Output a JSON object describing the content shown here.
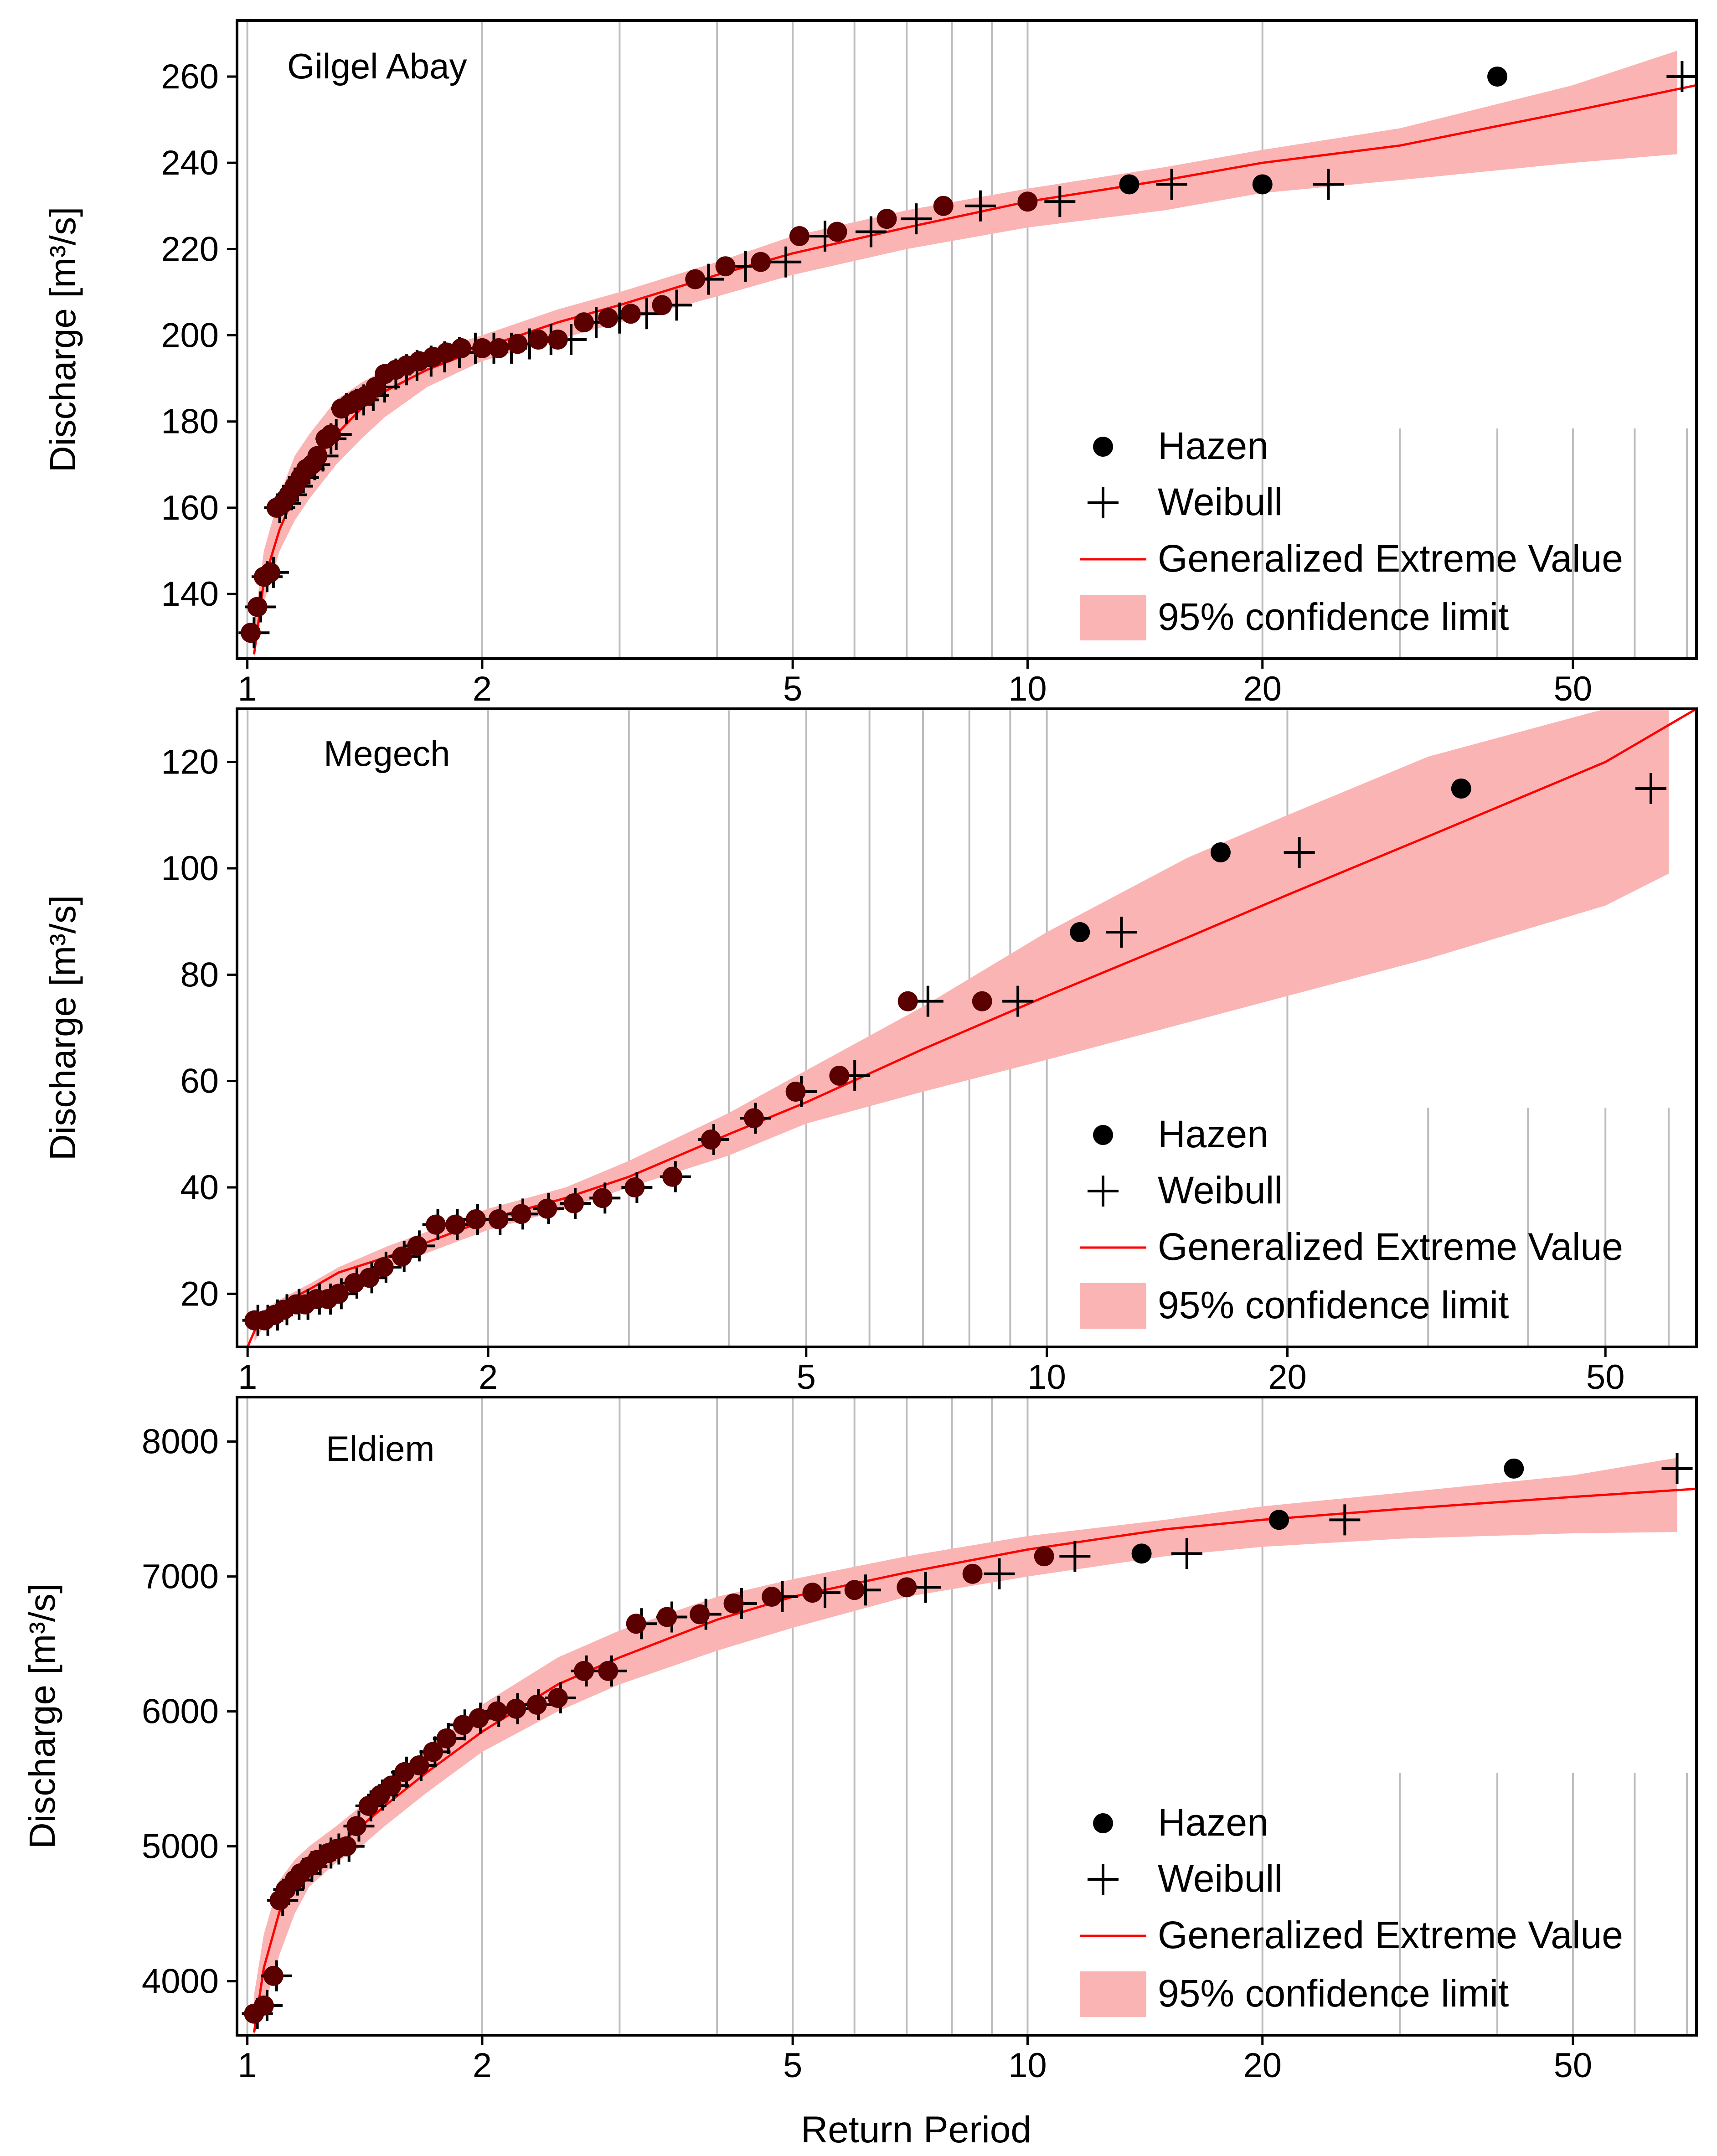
{
  "figure": {
    "xlabel": "Return Period",
    "legend": {
      "hazen": "Hazen",
      "weibull": "Weibull",
      "gev": "Generalized Extreme Value",
      "ci": "95% confidence limit"
    },
    "colors": {
      "band": "#fbb4b4",
      "line": "#ff0000",
      "hazen_point": "#000000",
      "overlap_point": "#5a0000",
      "grid": "#bdbdbd"
    }
  },
  "chart_data": [
    {
      "type": "scatter",
      "title": "Gilgel Abay",
      "ylabel": "Discharge  [m³/s]",
      "xlabel": "",
      "xscale": "log",
      "xlim": [
        0.97,
        72
      ],
      "ylim": [
        125,
        273
      ],
      "xticks": [
        1,
        2,
        5,
        10,
        20,
        50
      ],
      "yticks": [
        140,
        160,
        180,
        200,
        220,
        240,
        260
      ],
      "hazen": {
        "x": [
          1.01,
          1.03,
          1.05,
          1.07,
          1.09,
          1.11,
          1.13,
          1.15,
          1.17,
          1.19,
          1.21,
          1.23,
          1.26,
          1.28,
          1.32,
          1.35,
          1.38,
          1.42,
          1.46,
          1.5,
          1.55,
          1.6,
          1.66,
          1.73,
          1.8,
          1.88,
          2.0,
          2.1,
          2.22,
          2.36,
          2.5,
          2.7,
          2.9,
          3.1,
          3.4,
          3.75,
          4.1,
          4.55,
          5.1,
          5.7,
          6.6,
          7.8,
          10.0,
          13.5,
          20.0,
          40.0
        ],
        "y": [
          131,
          137,
          144,
          145,
          160,
          161,
          163,
          165,
          167,
          169,
          170,
          172,
          176,
          177,
          183,
          184,
          185,
          186,
          188,
          191,
          192,
          193,
          194,
          195,
          196,
          197,
          197,
          197,
          198,
          199,
          199,
          203,
          204,
          205,
          207,
          213,
          216,
          217,
          223,
          224,
          227,
          230,
          231,
          235,
          235,
          260
        ]
      },
      "weibull": {
        "x": [
          1.02,
          1.04,
          1.06,
          1.08,
          1.1,
          1.12,
          1.14,
          1.16,
          1.18,
          1.2,
          1.22,
          1.25,
          1.28,
          1.3,
          1.34,
          1.38,
          1.41,
          1.45,
          1.5,
          1.55,
          1.6,
          1.65,
          1.72,
          1.79,
          1.87,
          1.96,
          2.07,
          2.18,
          2.3,
          2.45,
          2.6,
          2.8,
          3.0,
          3.25,
          3.55,
          3.9,
          4.35,
          4.9,
          5.5,
          6.3,
          7.2,
          8.7,
          11.0,
          15.3,
          24.3,
          69.0
        ],
        "y": [
          131,
          137,
          144,
          145,
          160,
          161,
          163,
          165,
          167,
          169,
          170,
          172,
          176,
          177,
          183,
          184,
          185,
          186,
          188,
          191,
          192,
          193,
          194,
          195,
          196,
          197,
          197,
          197,
          198,
          199,
          199,
          203,
          204,
          205,
          207,
          213,
          216,
          217,
          223,
          224,
          227,
          230,
          231,
          235,
          235,
          260
        ]
      },
      "gev": {
        "x": [
          1.02,
          1.05,
          1.1,
          1.15,
          1.2,
          1.3,
          1.4,
          1.5,
          1.7,
          2.0,
          2.5,
          3.0,
          4.0,
          5.0,
          7.0,
          10.0,
          15.0,
          20.0,
          30.0,
          50.0,
          72.0
        ],
        "y": [
          126,
          143,
          155,
          163,
          169,
          177,
          183,
          187,
          192,
          197,
          203,
          207,
          214,
          219,
          225,
          231,
          236,
          240,
          244,
          252,
          258
        ]
      },
      "ci_upper": {
        "x": [
          1.02,
          1.05,
          1.1,
          1.15,
          1.2,
          1.3,
          1.4,
          1.5,
          1.7,
          2.0,
          2.5,
          3.0,
          4.0,
          5.0,
          7.0,
          10.0,
          15.0,
          20.0,
          30.0,
          50.0,
          68.0
        ],
        "y": [
          133,
          150,
          163,
          172,
          177,
          185,
          189,
          192,
          196,
          200,
          206,
          210,
          217,
          223,
          229,
          234,
          239,
          243,
          248,
          258,
          266
        ]
      },
      "ci_lower": {
        "x": [
          1.02,
          1.05,
          1.1,
          1.15,
          1.2,
          1.3,
          1.4,
          1.5,
          1.7,
          2.0,
          2.5,
          3.0,
          4.0,
          5.0,
          7.0,
          10.0,
          15.0,
          20.0,
          30.0,
          50.0,
          68.0
        ],
        "y": [
          125,
          138,
          150,
          157,
          162,
          170,
          176,
          181,
          188,
          194,
          199,
          203,
          209,
          214,
          220,
          225,
          229,
          233,
          236,
          240,
          242
        ]
      }
    },
    {
      "type": "scatter",
      "title": "Megech",
      "ylabel": "Discharge  [m³/s]",
      "xlabel": "",
      "xscale": "log",
      "xlim": [
        0.97,
        65
      ],
      "ylim": [
        10,
        130
      ],
      "xticks": [
        1,
        2,
        5,
        10,
        20,
        50
      ],
      "yticks": [
        20,
        40,
        60,
        80,
        100,
        120
      ],
      "hazen": {
        "x": [
          1.02,
          1.05,
          1.08,
          1.11,
          1.15,
          1.18,
          1.22,
          1.26,
          1.3,
          1.36,
          1.42,
          1.48,
          1.56,
          1.63,
          1.72,
          1.82,
          1.93,
          2.06,
          2.2,
          2.37,
          2.56,
          2.78,
          3.05,
          3.4,
          3.8,
          4.3,
          4.85,
          5.5,
          6.7,
          8.3,
          11.0,
          16.5,
          33.0
        ],
        "y": [
          15,
          15,
          16,
          17,
          18,
          18,
          19,
          19,
          20,
          22,
          23,
          25,
          27,
          29,
          33,
          33,
          34,
          34,
          35,
          36,
          37,
          38,
          40,
          42,
          49,
          53,
          58,
          61,
          75,
          75,
          88,
          103,
          115
        ]
      },
      "weibull": {
        "x": [
          1.03,
          1.06,
          1.09,
          1.12,
          1.16,
          1.19,
          1.23,
          1.27,
          1.31,
          1.37,
          1.43,
          1.49,
          1.57,
          1.64,
          1.73,
          1.83,
          1.94,
          2.07,
          2.21,
          2.38,
          2.57,
          2.8,
          3.07,
          3.43,
          3.83,
          4.32,
          4.93,
          5.75,
          7.1,
          9.2,
          12.4,
          20.7,
          57.0
        ],
        "y": [
          15,
          15,
          16,
          17,
          18,
          18,
          19,
          19,
          20,
          22,
          23,
          25,
          27,
          29,
          33,
          33,
          34,
          34,
          35,
          36,
          37,
          38,
          40,
          42,
          49,
          53,
          58,
          61,
          75,
          75,
          88,
          103,
          115
        ]
      },
      "gev": {
        "x": [
          1.0,
          1.02,
          1.05,
          1.1,
          1.2,
          1.3,
          1.5,
          1.7,
          2.0,
          2.5,
          3.0,
          4.0,
          5.0,
          7.0,
          10.0,
          15.0,
          20.0,
          30.0,
          50.0,
          65.0
        ],
        "y": [
          10,
          13,
          16,
          18,
          21,
          24,
          27,
          30,
          34,
          38,
          42,
          50,
          56,
          66,
          76,
          87,
          95,
          106,
          120,
          130
        ]
      },
      "ci_upper": {
        "x": [
          1.02,
          1.05,
          1.1,
          1.2,
          1.3,
          1.5,
          1.7,
          2.0,
          2.5,
          3.0,
          4.0,
          5.0,
          7.0,
          10.0,
          15.0,
          20.0,
          30.0,
          50.0,
          60.0
        ],
        "y": [
          15,
          17,
          19,
          22,
          25,
          29,
          32,
          36,
          40,
          45,
          54,
          62,
          74,
          88,
          102,
          110,
          121,
          130,
          130
        ]
      },
      "ci_lower": {
        "x": [
          1.02,
          1.05,
          1.1,
          1.2,
          1.3,
          1.5,
          1.7,
          2.0,
          2.5,
          3.0,
          4.0,
          5.0,
          7.0,
          10.0,
          15.0,
          20.0,
          30.0,
          50.0,
          60.0
        ],
        "y": [
          11,
          14,
          16,
          19,
          21,
          25,
          28,
          32,
          36,
          40,
          46,
          52,
          58,
          64,
          71,
          76,
          83,
          93,
          99
        ]
      }
    },
    {
      "type": "scatter",
      "title": "Eldiem",
      "ylabel": "Discharge  [m³/s]",
      "xlabel": "Return Period",
      "xscale": "log",
      "xlim": [
        0.97,
        72
      ],
      "ylim": [
        3600,
        8330
      ],
      "xticks": [
        1,
        2,
        5,
        10,
        20,
        50
      ],
      "yticks": [
        4000,
        5000,
        6000,
        7000,
        8000
      ],
      "hazen": {
        "x": [
          1.02,
          1.05,
          1.08,
          1.1,
          1.12,
          1.15,
          1.17,
          1.2,
          1.23,
          1.27,
          1.3,
          1.34,
          1.38,
          1.43,
          1.48,
          1.53,
          1.59,
          1.66,
          1.73,
          1.8,
          1.89,
          1.98,
          2.09,
          2.21,
          2.35,
          2.5,
          2.7,
          2.9,
          3.15,
          3.45,
          3.8,
          4.2,
          4.7,
          5.3,
          6.0,
          7.0,
          8.5,
          10.5,
          14.0,
          21.0,
          42.0
        ],
        "y": [
          3760,
          3820,
          4040,
          4600,
          4680,
          4750,
          4800,
          4850,
          4900,
          4950,
          4980,
          5000,
          5150,
          5300,
          5380,
          5450,
          5550,
          5600,
          5700,
          5800,
          5900,
          5950,
          6000,
          6020,
          6050,
          6100,
          6300,
          6300,
          6650,
          6700,
          6720,
          6800,
          6850,
          6880,
          6900,
          6920,
          7020,
          7150,
          7170,
          7420,
          7800
        ]
      },
      "weibull": {
        "x": [
          1.03,
          1.06,
          1.09,
          1.11,
          1.13,
          1.16,
          1.18,
          1.21,
          1.24,
          1.28,
          1.31,
          1.35,
          1.39,
          1.44,
          1.49,
          1.54,
          1.6,
          1.67,
          1.74,
          1.81,
          1.9,
          1.99,
          2.1,
          2.22,
          2.36,
          2.52,
          2.72,
          2.93,
          3.2,
          3.5,
          3.87,
          4.3,
          4.85,
          5.5,
          6.2,
          7.4,
          9.2,
          11.5,
          16.0,
          25.5,
          68.0
        ],
        "y": [
          3760,
          3820,
          4040,
          4600,
          4680,
          4750,
          4800,
          4850,
          4900,
          4950,
          4980,
          5000,
          5150,
          5300,
          5380,
          5450,
          5550,
          5600,
          5700,
          5800,
          5900,
          5950,
          6000,
          6020,
          6050,
          6100,
          6300,
          6300,
          6650,
          6700,
          6720,
          6800,
          6850,
          6880,
          6900,
          6920,
          7020,
          7150,
          7170,
          7420,
          7800
        ]
      },
      "gev": {
        "x": [
          1.02,
          1.05,
          1.1,
          1.15,
          1.2,
          1.3,
          1.4,
          1.5,
          1.7,
          2.0,
          2.5,
          3.0,
          4.0,
          5.0,
          7.0,
          10.0,
          15.0,
          20.0,
          30.0,
          50.0,
          72.0
        ],
        "y": [
          3620,
          4100,
          4520,
          4760,
          4860,
          5000,
          5150,
          5300,
          5550,
          5850,
          6200,
          6400,
          6680,
          6850,
          7030,
          7200,
          7350,
          7420,
          7500,
          7590,
          7650
        ]
      },
      "ci_upper": {
        "x": [
          1.02,
          1.05,
          1.1,
          1.15,
          1.2,
          1.3,
          1.4,
          1.5,
          1.7,
          2.0,
          2.5,
          3.0,
          4.0,
          5.0,
          7.0,
          10.0,
          15.0,
          20.0,
          30.0,
          50.0,
          68.0
        ],
        "y": [
          3900,
          4350,
          4750,
          4900,
          5000,
          5150,
          5300,
          5450,
          5720,
          6050,
          6400,
          6600,
          6850,
          6980,
          7150,
          7300,
          7420,
          7520,
          7620,
          7750,
          7880
        ]
      },
      "ci_lower": {
        "x": [
          1.02,
          1.05,
          1.1,
          1.15,
          1.2,
          1.3,
          1.4,
          1.5,
          1.7,
          2.0,
          2.5,
          3.0,
          4.0,
          5.0,
          7.0,
          10.0,
          15.0,
          20.0,
          30.0,
          50.0,
          68.0
        ],
        "y": [
          3600,
          3800,
          4200,
          4500,
          4700,
          4880,
          5000,
          5150,
          5400,
          5700,
          6000,
          6200,
          6450,
          6620,
          6850,
          7000,
          7150,
          7220,
          7280,
          7320,
          7330
        ]
      }
    }
  ]
}
